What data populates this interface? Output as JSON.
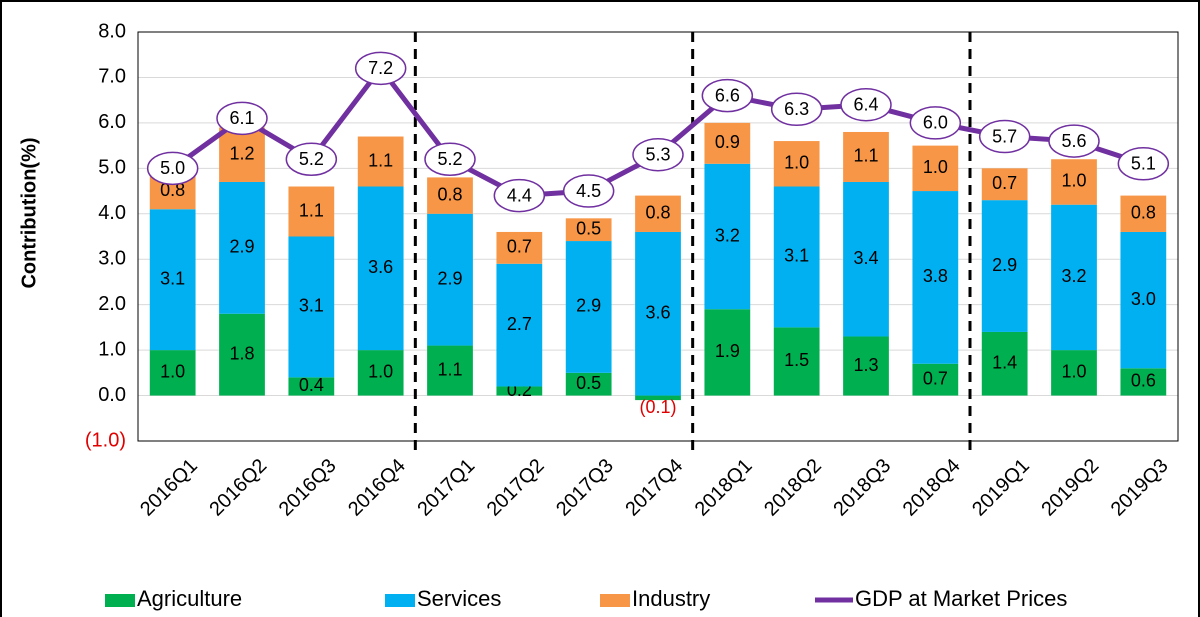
{
  "chart_data": {
    "type": "bar",
    "y_label": "Contribution(%)",
    "categories": [
      "2016Q1",
      "2016Q2",
      "2016Q3",
      "2016Q4",
      "2017Q1",
      "2017Q2",
      "2017Q3",
      "2017Q4",
      "2018Q1",
      "2018Q2",
      "2018Q3",
      "2018Q4",
      "2019Q1",
      "2019Q2",
      "2019Q3"
    ],
    "series": [
      {
        "name": "Agriculture",
        "color": "#00b050",
        "values": [
          1.0,
          1.8,
          0.4,
          1.0,
          1.1,
          0.2,
          0.5,
          -0.1,
          1.9,
          1.5,
          1.3,
          0.7,
          1.4,
          1.0,
          0.6
        ],
        "value_labels": [
          "1.0",
          "1.8",
          "0.4",
          "1.0",
          "1.1",
          "0.2",
          "0.5",
          "(0.1)",
          "1.9",
          "1.5",
          "1.3",
          "0.7",
          "1.4",
          "1.0",
          "0.6"
        ]
      },
      {
        "name": "Services",
        "color": "#00b0f0",
        "values": [
          3.1,
          2.9,
          3.1,
          3.6,
          2.9,
          2.7,
          2.9,
          3.6,
          3.2,
          3.1,
          3.4,
          3.8,
          2.9,
          3.2,
          3.0
        ],
        "value_labels": [
          "3.1",
          "2.9",
          "3.1",
          "3.6",
          "2.9",
          "2.7",
          "2.9",
          "3.6",
          "3.2",
          "3.1",
          "3.4",
          "3.8",
          "2.9",
          "3.2",
          "3.0"
        ]
      },
      {
        "name": "Industry",
        "color": "#f79646",
        "values": [
          0.8,
          1.2,
          1.1,
          1.1,
          0.8,
          0.7,
          0.5,
          0.8,
          0.9,
          1.0,
          1.1,
          1.0,
          0.7,
          1.0,
          0.8
        ],
        "value_labels": [
          "0.8",
          "1.2",
          "1.1",
          "1.1",
          "0.8",
          "0.7",
          "0.5",
          "0.8",
          "0.9",
          "1.0",
          "1.1",
          "1.0",
          "0.7",
          "1.0",
          "0.8"
        ]
      },
      {
        "name": "GDP at Market Prices",
        "type": "line",
        "color": "#7030a0",
        "values": [
          5.0,
          6.1,
          5.2,
          7.2,
          5.2,
          4.4,
          4.5,
          5.3,
          6.6,
          6.3,
          6.4,
          6.0,
          5.7,
          5.6,
          5.1
        ],
        "value_labels": [
          "5.0",
          "6.1",
          "5.2",
          "7.2",
          "5.2",
          "4.4",
          "4.5",
          "5.3",
          "6.6",
          "6.3",
          "6.4",
          "6.0",
          "5.7",
          "5.6",
          "5.1"
        ]
      }
    ],
    "ylim": [
      -1,
      8
    ],
    "yticks": [
      {
        "value": -1,
        "label": "(1.0)"
      },
      {
        "value": 0,
        "label": "0.0"
      },
      {
        "value": 1,
        "label": "1.0"
      },
      {
        "value": 2,
        "label": "2.0"
      },
      {
        "value": 3,
        "label": "3.0"
      },
      {
        "value": 4,
        "label": "4.0"
      },
      {
        "value": 5,
        "label": "5.0"
      },
      {
        "value": 6,
        "label": "6.0"
      },
      {
        "value": 7,
        "label": "7.0"
      },
      {
        "value": 8,
        "label": "8.0"
      }
    ],
    "grid": true,
    "legend": "bottom"
  }
}
